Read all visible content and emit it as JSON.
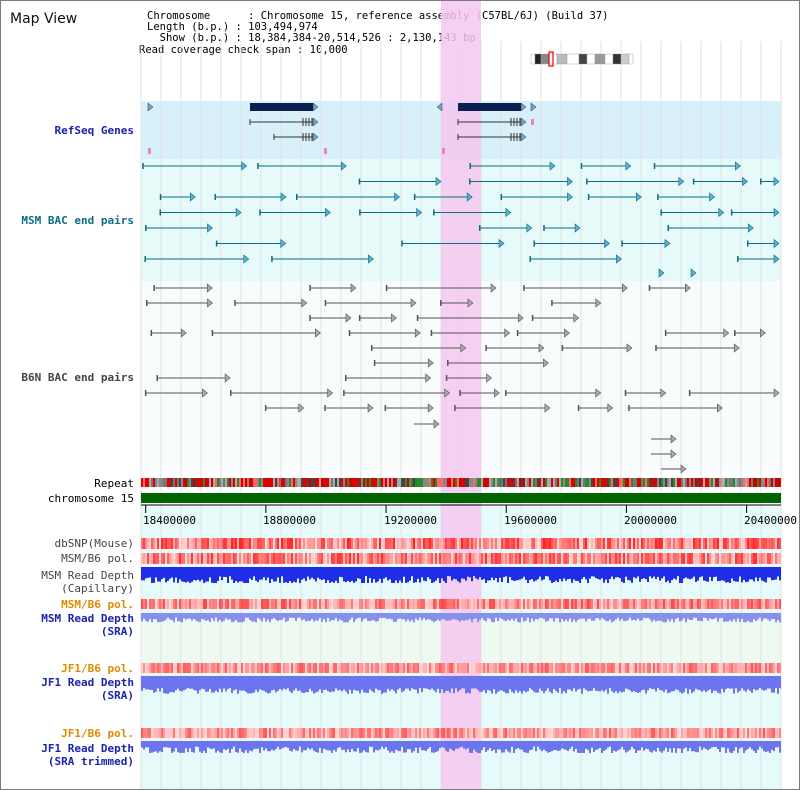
{
  "title": "Map View",
  "info": {
    "chromosome": "Chromosome      : Chromosome 15, reference assembly (C57BL/6J) (Build 37)",
    "length": "Length (b.p.) : 103,494,974",
    "show": "  Show (b.p.) : 18,384,384-20,514,526 : 2,130,143 bp",
    "coverage": "Read coverage check span : 10,000"
  },
  "tracks": {
    "refseq": "RefSeq Genes",
    "msm_bac": "MSM BAC end pairs",
    "b6n_bac": "B6N BAC end pairs",
    "repeat": "Repeat",
    "chromosome": "chromosome 15",
    "dbsnp": "dbSNP(Mouse)",
    "msm_b6_pol_1": "MSM/B6 pol.",
    "msm_depth_cap_1": "MSM Read Depth",
    "msm_depth_cap_2": "(Capillary)",
    "msm_b6_pol_2": "MSM/B6 pol.",
    "msm_depth_sra_1": "MSM Read Depth",
    "msm_depth_sra_2": "(SRA)",
    "jf1_b6_pol_1": "JF1/B6 pol.",
    "jf1_depth_sra_1": "JF1 Read Depth",
    "jf1_depth_sra_2": "(SRA)",
    "jf1_b6_pol_2": "JF1/B6 pol.",
    "jf1_depth_trim_1": "JF1 Read Depth",
    "jf1_depth_trim_2": "(SRA trimmed)"
  },
  "axis": {
    "ticks": [
      "18400000",
      "18800000",
      "19200000",
      "19600000",
      "20000000",
      "20400000"
    ],
    "range_start": 18384384,
    "range_end": 20514526
  },
  "colors": {
    "refseq_bg": "#d8f0fa",
    "track_bg": "#e6fafa",
    "highlight": "#f5c8f0",
    "gene": "#0a1f4f",
    "msm_feature": "#0b6c84",
    "b6n_feature": "#555555",
    "chromosome_bar": "#006400",
    "depth_msm": "#1f2ee6",
    "depth_sra": "#6c74ee"
  }
}
